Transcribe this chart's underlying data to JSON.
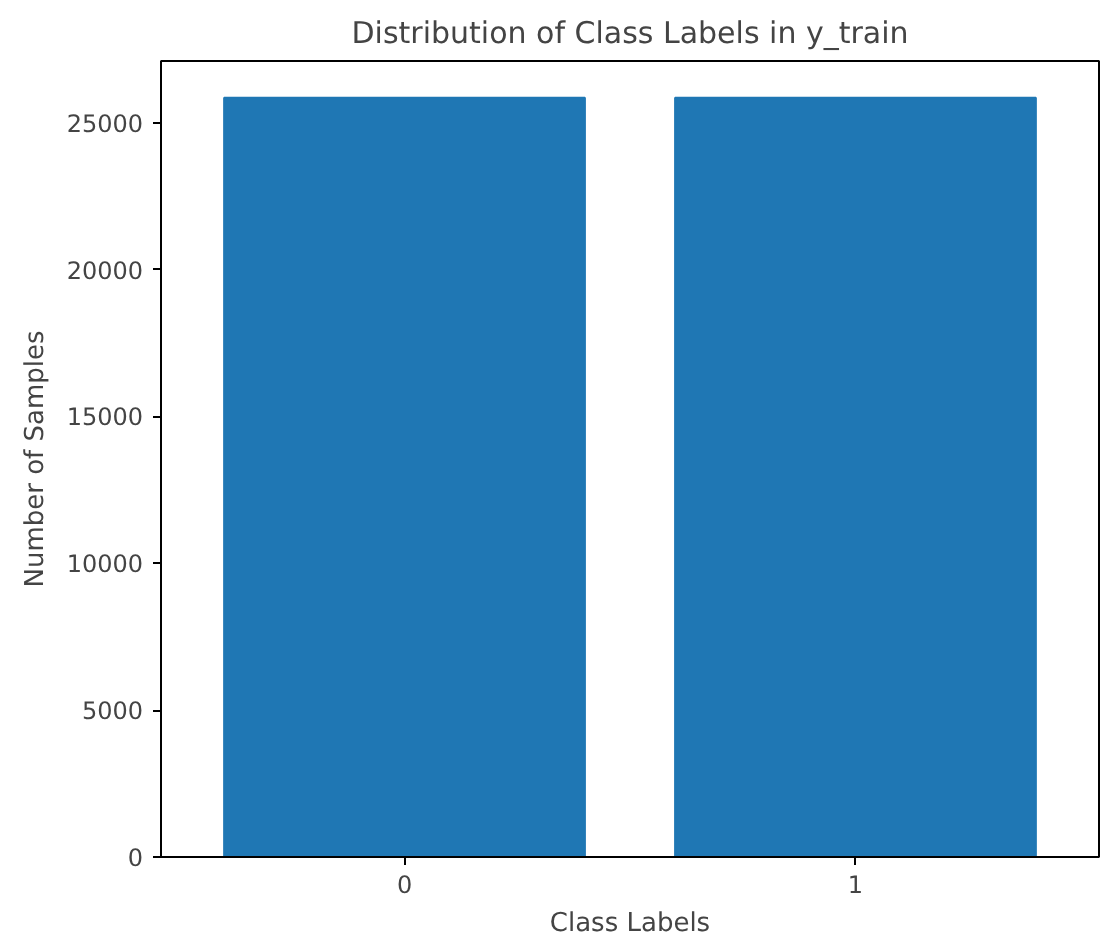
{
  "chart_data": {
    "type": "bar",
    "title": "Distribution of Class Labels in y_train",
    "xlabel": "Class Labels",
    "ylabel": "Number of Samples",
    "categories": [
      "0",
      "1"
    ],
    "values": [
      25850,
      25850
    ],
    "color": "#1f77b4",
    "ylim": [
      0,
      27100
    ],
    "yticks": [
      0,
      5000,
      10000,
      15000,
      20000,
      25000
    ],
    "grid": false
  }
}
